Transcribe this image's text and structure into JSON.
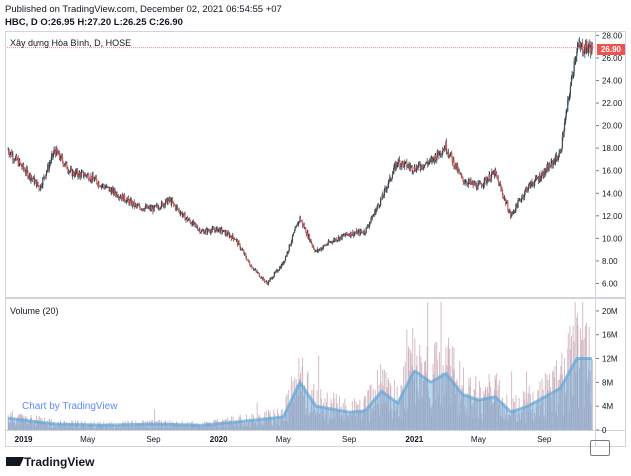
{
  "header": {
    "published": "Published on TradingView.com, December 02, 2021 06:54:55 +07",
    "ohlc": "HBC, D O:26.95 H:27.20 L:26.25 C:26.90"
  },
  "legend": {
    "symbol_title": "Xây dựng Hòa Bình, D, HOSE",
    "volume_title": "Volume (20)"
  },
  "watermark": "Chart by TradingView",
  "footer": {
    "brand": "TradingView"
  },
  "icons": {
    "snapshot": "camera-icon",
    "logo": "tradingview-logo-icon"
  },
  "colors": {
    "up": "#26a69a",
    "down": "#ef5350",
    "candle": "#2d3b45",
    "volume_bar": "#c8a5b4",
    "volume_ma": "#5fa8d8",
    "last_price": "#ef5350"
  },
  "chart_data": [
    {
      "type": "candlestick",
      "title": "Xây dựng Hòa Bình, D, HOSE",
      "last_price": "26.90",
      "y_ticks": [
        "6.00",
        "8.00",
        "10.00",
        "12.00",
        "14.00",
        "16.00",
        "18.00",
        "20.00",
        "22.00",
        "24.00",
        "26.00",
        "28.00"
      ],
      "ylim": [
        4.8,
        28.3
      ],
      "x_ticks": [
        "2019",
        "May",
        "Sep",
        "2020",
        "May",
        "Sep",
        "2021",
        "May",
        "Sep"
      ],
      "close_path": [
        {
          "t": "2018-12",
          "v": 18.0
        },
        {
          "t": "2019-01",
          "v": 16.2
        },
        {
          "t": "2019-02",
          "v": 14.5
        },
        {
          "t": "2019-03",
          "v": 17.8
        },
        {
          "t": "2019-04",
          "v": 15.8
        },
        {
          "t": "2019-05",
          "v": 15.6
        },
        {
          "t": "2019-06",
          "v": 14.6
        },
        {
          "t": "2019-07",
          "v": 13.8
        },
        {
          "t": "2019-08",
          "v": 12.8
        },
        {
          "t": "2019-09",
          "v": 12.6
        },
        {
          "t": "2019-10",
          "v": 13.4
        },
        {
          "t": "2019-11",
          "v": 11.8
        },
        {
          "t": "2019-12",
          "v": 10.6
        },
        {
          "t": "2020-01",
          "v": 10.8
        },
        {
          "t": "2020-02",
          "v": 10.0
        },
        {
          "t": "2020-03",
          "v": 7.6
        },
        {
          "t": "2020-04",
          "v": 6.0
        },
        {
          "t": "2020-05",
          "v": 7.8
        },
        {
          "t": "2020-06",
          "v": 11.8
        },
        {
          "t": "2020-07",
          "v": 8.8
        },
        {
          "t": "2020-08",
          "v": 9.8
        },
        {
          "t": "2020-09",
          "v": 10.4
        },
        {
          "t": "2020-10",
          "v": 10.6
        },
        {
          "t": "2020-11",
          "v": 13.5
        },
        {
          "t": "2020-12",
          "v": 16.8
        },
        {
          "t": "2021-01",
          "v": 16.2
        },
        {
          "t": "2021-02",
          "v": 16.8
        },
        {
          "t": "2021-03",
          "v": 18.2
        },
        {
          "t": "2021-04",
          "v": 15.2
        },
        {
          "t": "2021-05",
          "v": 14.6
        },
        {
          "t": "2021-06",
          "v": 15.8
        },
        {
          "t": "2021-07",
          "v": 12.0
        },
        {
          "t": "2021-08",
          "v": 14.5
        },
        {
          "t": "2021-09",
          "v": 15.8
        },
        {
          "t": "2021-10",
          "v": 17.5
        },
        {
          "t": "2021-11",
          "v": 26.9
        }
      ]
    },
    {
      "type": "bar",
      "title": "Volume (20)",
      "y_ticks": [
        "0",
        "4M",
        "8M",
        "12M",
        "16M",
        "20M"
      ],
      "ylim": [
        0,
        22
      ],
      "volume_ma_path": [
        {
          "t": "2018-12",
          "v": 2.0
        },
        {
          "t": "2019-03",
          "v": 1.0
        },
        {
          "t": "2019-06",
          "v": 0.8
        },
        {
          "t": "2019-09",
          "v": 1.0
        },
        {
          "t": "2019-12",
          "v": 0.8
        },
        {
          "t": "2020-03",
          "v": 1.6
        },
        {
          "t": "2020-05",
          "v": 2.2
        },
        {
          "t": "2020-06",
          "v": 8.0
        },
        {
          "t": "2020-07",
          "v": 4.0
        },
        {
          "t": "2020-09",
          "v": 3.0
        },
        {
          "t": "2020-10",
          "v": 3.2
        },
        {
          "t": "2020-11",
          "v": 6.5
        },
        {
          "t": "2020-12",
          "v": 4.5
        },
        {
          "t": "2021-01",
          "v": 10.0
        },
        {
          "t": "2021-02",
          "v": 8.0
        },
        {
          "t": "2021-03",
          "v": 9.5
        },
        {
          "t": "2021-04",
          "v": 6.0
        },
        {
          "t": "2021-05",
          "v": 5.0
        },
        {
          "t": "2021-06",
          "v": 5.6
        },
        {
          "t": "2021-07",
          "v": 3.0
        },
        {
          "t": "2021-08",
          "v": 4.0
        },
        {
          "t": "2021-09",
          "v": 5.5
        },
        {
          "t": "2021-10",
          "v": 7.0
        },
        {
          "t": "2021-11",
          "v": 12.0
        }
      ]
    }
  ]
}
